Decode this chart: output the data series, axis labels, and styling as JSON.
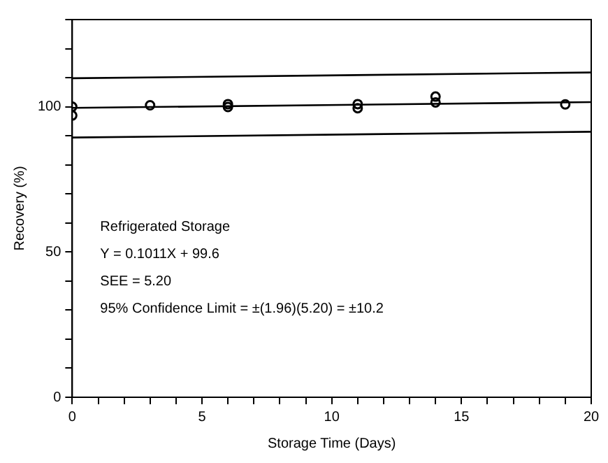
{
  "chart_data": {
    "type": "scatter",
    "xlabel": "Storage Time (Days)",
    "ylabel": "Recovery (%)",
    "xlim": [
      0,
      20
    ],
    "ylim": [
      0,
      130
    ],
    "xticks": [
      0,
      {
        "value": 1,
        "label": null
      },
      {
        "value": 2,
        "label": null
      },
      {
        "value": 3,
        "label": null
      },
      {
        "value": 4,
        "label": null
      },
      5,
      {
        "value": 6,
        "label": null
      },
      {
        "value": 7,
        "label": null
      },
      {
        "value": 8,
        "label": null
      },
      {
        "value": 9,
        "label": null
      },
      10,
      {
        "value": 11,
        "label": null
      },
      {
        "value": 12,
        "label": null
      },
      {
        "value": 13,
        "label": null
      },
      {
        "value": 14,
        "label": null
      },
      15,
      {
        "value": 16,
        "label": null
      },
      {
        "value": 17,
        "label": null
      },
      {
        "value": 18,
        "label": null
      },
      {
        "value": 19,
        "label": null
      },
      20
    ],
    "yticks": [
      0,
      {
        "value": 10,
        "label": null
      },
      {
        "value": 20,
        "label": null
      },
      {
        "value": 30,
        "label": null
      },
      {
        "value": 40,
        "label": null
      },
      50,
      {
        "value": 60,
        "label": null
      },
      {
        "value": 70,
        "label": null
      },
      {
        "value": 80,
        "label": null
      },
      {
        "value": 90,
        "label": null
      },
      100,
      {
        "value": 110,
        "label": null
      },
      {
        "value": 120,
        "label": null
      },
      {
        "value": 130,
        "label": null
      }
    ],
    "grid": false,
    "legend": false,
    "series": [
      {
        "type": "scatter",
        "marker": "circle",
        "color": "#000000",
        "x": [
          0,
          0,
          3,
          6,
          6,
          11,
          11,
          14,
          14,
          19
        ],
        "values": [
          100,
          97,
          100.5,
          100.9,
          99.9,
          100.9,
          99.5,
          103.5,
          101.5,
          100.8
        ]
      },
      {
        "type": "line",
        "color": "#000000",
        "x": [
          0,
          20
        ],
        "values": [
          99.6,
          101.6
        ]
      },
      {
        "type": "line",
        "color": "#000000",
        "x": [
          0,
          20
        ],
        "values": [
          109.8,
          111.8
        ]
      },
      {
        "type": "line",
        "color": "#000000",
        "x": [
          0,
          20
        ],
        "values": [
          89.4,
          91.4
        ]
      }
    ],
    "annotations": [
      "Refrigerated Storage",
      "Y = 0.1011X + 99.6",
      "SEE = 5.20",
      "95% Confidence Limit = ±(1.96)(5.20) = ±10.2"
    ]
  }
}
